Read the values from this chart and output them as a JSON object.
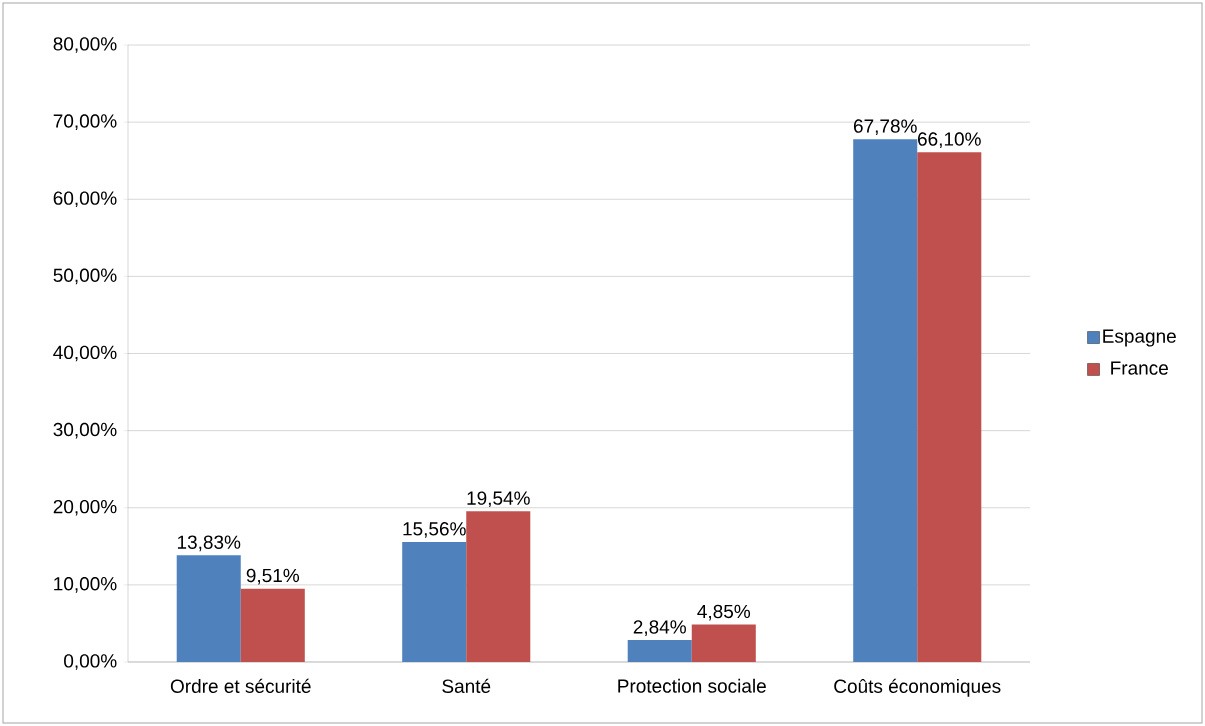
{
  "chart_data": {
    "type": "bar",
    "categories": [
      "Ordre et sécurité",
      "Santé",
      "Protection sociale",
      "Coûts économiques"
    ],
    "series": [
      {
        "name": "Espagne",
        "color": "#4f81bd",
        "values": [
          13.83,
          15.56,
          2.84,
          67.78
        ],
        "value_labels": [
          "13,83%",
          "15,56%",
          "2,84%",
          "67,78%"
        ]
      },
      {
        "name": "France",
        "color": "#c0504d",
        "values": [
          9.51,
          19.54,
          4.85,
          66.1
        ],
        "value_labels": [
          "9,51%",
          "19,54%",
          "4,85%",
          "66,10%"
        ]
      }
    ],
    "ylim": [
      0,
      80
    ],
    "yticks": [
      {
        "value": 0,
        "label": "0,00%"
      },
      {
        "value": 10,
        "label": "10,00%"
      },
      {
        "value": 20,
        "label": "20,00%"
      },
      {
        "value": 30,
        "label": "30,00%"
      },
      {
        "value": 40,
        "label": "40,00%"
      },
      {
        "value": 50,
        "label": "50,00%"
      },
      {
        "value": 60,
        "label": "60,00%"
      },
      {
        "value": 70,
        "label": "70,00%"
      },
      {
        "value": 80,
        "label": "80,00%"
      }
    ],
    "grid": "y",
    "legend": "right"
  }
}
